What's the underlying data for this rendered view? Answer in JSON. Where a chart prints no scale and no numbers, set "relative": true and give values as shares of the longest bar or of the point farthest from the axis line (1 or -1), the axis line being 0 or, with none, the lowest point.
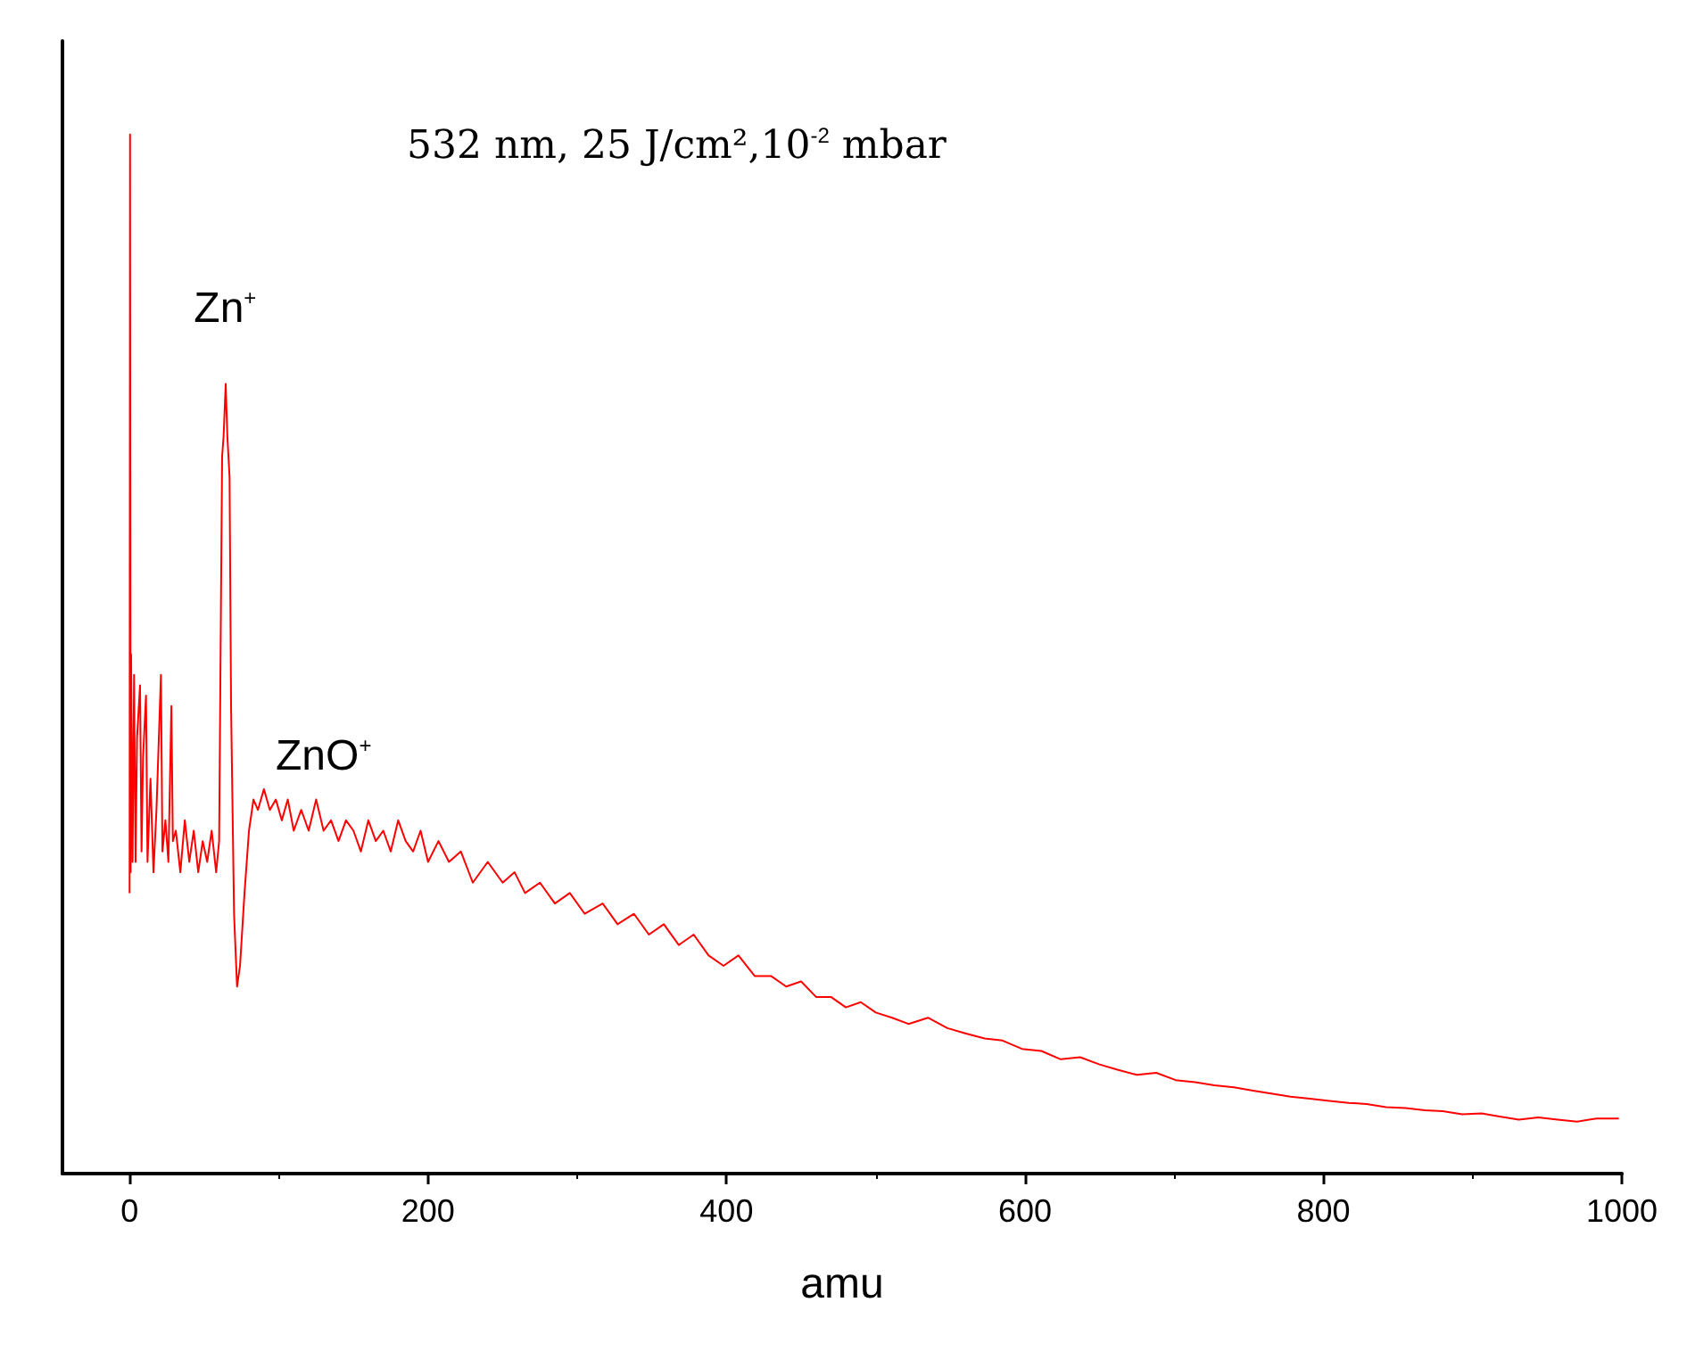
{
  "chart_data": {
    "type": "line",
    "xlabel": "amu",
    "relative": true,
    "tick_labels": "x",
    "grid": false,
    "marker": "none",
    "line_style": "solid",
    "xlim": [
      -45,
      1000
    ],
    "xticks": [
      0,
      200,
      400,
      600,
      800,
      1000
    ],
    "annotations": [
      "532 nm, 25 J/cm²,10$^{-2}$ mbar",
      {
        "text": "Zn$^{+}$",
        "x": 64,
        "y": 0.76
      },
      {
        "text": "ZnO$^{+}$",
        "x": 130,
        "y": 0.33
      }
    ],
    "series": [
      {
        "color": "#ff0000",
        "x": [
          0,
          0.3,
          0.7,
          1,
          2,
          3,
          4,
          5,
          7,
          8,
          9,
          11,
          12,
          14,
          16,
          18,
          21,
          22,
          24,
          26,
          28,
          29,
          31,
          34,
          37,
          40,
          43,
          46,
          49,
          52,
          55,
          58,
          60,
          62,
          63,
          64.4,
          65.5,
          67,
          68,
          70,
          72,
          74,
          77,
          80,
          83,
          86,
          90,
          94,
          98,
          102,
          106,
          110,
          115,
          120,
          125,
          130,
          135,
          140,
          145,
          150,
          155,
          160,
          165,
          170,
          175,
          180,
          185,
          190,
          195,
          200,
          207,
          214,
          222,
          230,
          240,
          250,
          258,
          265,
          275,
          285,
          295,
          305,
          317,
          327,
          338,
          348,
          358,
          368,
          378,
          388,
          398,
          408,
          419,
          430,
          440,
          450,
          460,
          470,
          480,
          490,
          500,
          511,
          522,
          535,
          548,
          560,
          573,
          585,
          598,
          611,
          624,
          637,
          650,
          662,
          675,
          688,
          701,
          714,
          727,
          740,
          752,
          765,
          778,
          791,
          804,
          817,
          829,
          842,
          855,
          868,
          880,
          893,
          906,
          918,
          931,
          944,
          957,
          970,
          983,
          998
        ],
        "values": [
          0.27,
          1.0,
          0.29,
          0.5,
          0.3,
          0.48,
          0.3,
          0.42,
          0.47,
          0.31,
          0.4,
          0.46,
          0.3,
          0.38,
          0.29,
          0.35,
          0.48,
          0.31,
          0.34,
          0.3,
          0.45,
          0.32,
          0.33,
          0.29,
          0.34,
          0.3,
          0.33,
          0.29,
          0.32,
          0.3,
          0.33,
          0.29,
          0.32,
          0.69,
          0.71,
          0.76,
          0.71,
          0.67,
          0.45,
          0.25,
          0.18,
          0.2,
          0.27,
          0.33,
          0.36,
          0.35,
          0.37,
          0.35,
          0.36,
          0.34,
          0.36,
          0.33,
          0.35,
          0.33,
          0.36,
          0.33,
          0.34,
          0.32,
          0.34,
          0.33,
          0.31,
          0.34,
          0.32,
          0.33,
          0.31,
          0.34,
          0.32,
          0.31,
          0.33,
          0.3,
          0.32,
          0.3,
          0.31,
          0.28,
          0.3,
          0.28,
          0.29,
          0.27,
          0.28,
          0.26,
          0.27,
          0.25,
          0.26,
          0.24,
          0.25,
          0.23,
          0.24,
          0.22,
          0.23,
          0.21,
          0.2,
          0.21,
          0.19,
          0.19,
          0.18,
          0.185,
          0.17,
          0.17,
          0.16,
          0.165,
          0.155,
          0.15,
          0.144,
          0.15,
          0.14,
          0.135,
          0.13,
          0.128,
          0.12,
          0.118,
          0.11,
          0.112,
          0.105,
          0.1,
          0.095,
          0.097,
          0.09,
          0.088,
          0.085,
          0.083,
          0.08,
          0.077,
          0.074,
          0.072,
          0.07,
          0.068,
          0.067,
          0.064,
          0.063,
          0.061,
          0.06,
          0.057,
          0.058,
          0.055,
          0.052,
          0.054,
          0.052,
          0.05,
          0.053,
          0.053
        ]
      }
    ]
  }
}
